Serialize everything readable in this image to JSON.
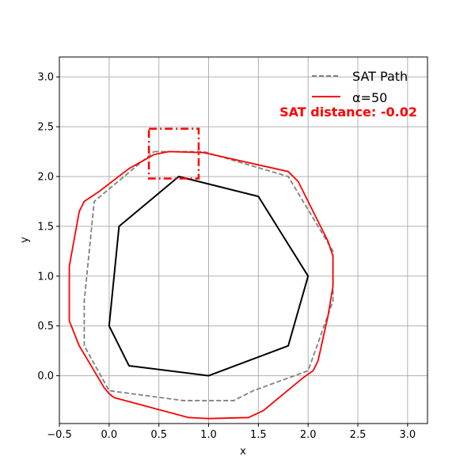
{
  "chart_data": {
    "type": "line",
    "xlabel": "x",
    "ylabel": "y",
    "xlim": [
      -0.5,
      3.2
    ],
    "ylim": [
      -0.48,
      3.2
    ],
    "xticks": [
      -0.5,
      0.0,
      0.5,
      1.0,
      1.5,
      2.0,
      2.5,
      3.0
    ],
    "xtick_labels": [
      "−0.5",
      "0.0",
      "0.5",
      "1.0",
      "1.5",
      "2.0",
      "2.5",
      "3.0"
    ],
    "yticks": [
      0.0,
      0.5,
      1.0,
      1.5,
      2.0,
      2.5,
      3.0
    ],
    "ytick_labels": [
      "0.0",
      "0.5",
      "1.0",
      "1.5",
      "2.0",
      "2.5",
      "3.0"
    ],
    "grid": true,
    "legend_position": "top-right",
    "annotation": {
      "text": "SAT distance: -0.02",
      "color": "#ff0000"
    },
    "polygon": {
      "color": "#000000",
      "points": [
        [
          0.7,
          2.0
        ],
        [
          1.5,
          1.8
        ],
        [
          2.0,
          1.0
        ],
        [
          1.8,
          0.3
        ],
        [
          1.0,
          0.0
        ],
        [
          0.2,
          0.1
        ],
        [
          0.0,
          0.5
        ],
        [
          0.1,
          1.5
        ]
      ]
    },
    "series": [
      {
        "name": "SAT Path",
        "color": "#808080",
        "style": "dashed",
        "points": [
          [
            0.45,
            2.25
          ],
          [
            0.95,
            2.25
          ],
          [
            1.8,
            2.0
          ],
          [
            2.25,
            1.25
          ],
          [
            2.25,
            0.75
          ],
          [
            2.0,
            0.05
          ],
          [
            1.45,
            -0.15
          ],
          [
            1.25,
            -0.25
          ],
          [
            0.75,
            -0.25
          ],
          [
            -0.0,
            -0.15
          ],
          [
            -0.25,
            0.3
          ],
          [
            -0.25,
            0.75
          ],
          [
            -0.15,
            1.75
          ],
          [
            0.45,
            2.25
          ]
        ]
      },
      {
        "name": "α=50",
        "color": "#ff0000",
        "style": "solid",
        "points": [
          [
            0.45,
            2.22
          ],
          [
            0.6,
            2.25
          ],
          [
            0.95,
            2.24
          ],
          [
            1.8,
            2.05
          ],
          [
            1.9,
            1.95
          ],
          [
            2.2,
            1.35
          ],
          [
            2.25,
            1.2
          ],
          [
            2.25,
            0.9
          ],
          [
            2.2,
            0.6
          ],
          [
            2.1,
            0.15
          ],
          [
            2.05,
            0.05
          ],
          [
            1.95,
            -0.02
          ],
          [
            1.55,
            -0.35
          ],
          [
            1.4,
            -0.42
          ],
          [
            1.0,
            -0.43
          ],
          [
            0.8,
            -0.42
          ],
          [
            0.05,
            -0.22
          ],
          [
            0.0,
            -0.18
          ],
          [
            -0.05,
            -0.12
          ],
          [
            -0.3,
            0.3
          ],
          [
            -0.4,
            0.55
          ],
          [
            -0.4,
            1.1
          ],
          [
            -0.3,
            1.65
          ],
          [
            -0.25,
            1.75
          ],
          [
            -0.1,
            1.85
          ],
          [
            0.2,
            2.08
          ],
          [
            0.45,
            2.22
          ]
        ]
      }
    ],
    "highlight_box": {
      "color": "#ff0000",
      "style": "dashdot",
      "x0": 0.4,
      "x1": 0.9,
      "y0": 1.98,
      "y1": 2.48
    }
  }
}
